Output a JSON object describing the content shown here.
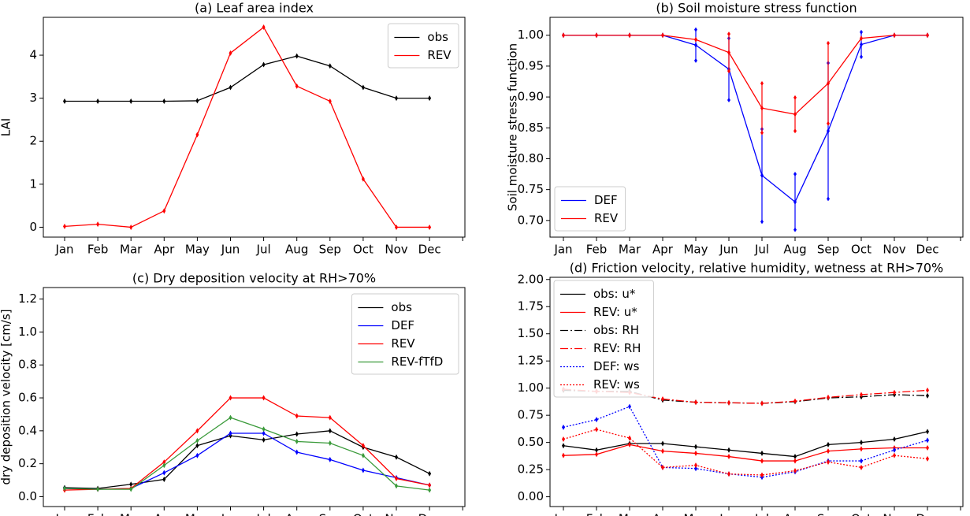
{
  "chart_data": [
    {
      "type": "line",
      "title": "(a) Leaf area index",
      "y_label": "LAI",
      "categories": [
        "Jan",
        "Feb",
        "Mar",
        "Apr",
        "May",
        "Jun",
        "Jul",
        "Aug",
        "Sep",
        "Oct",
        "Nov",
        "Dec"
      ],
      "ylim": [
        -0.23,
        4.88
      ],
      "yticks": [
        0,
        1,
        2,
        3,
        4
      ],
      "legend": "upper right",
      "series": [
        {
          "name": "obs",
          "color": "#000000",
          "values": [
            2.93,
            2.93,
            2.93,
            2.93,
            2.94,
            3.25,
            3.78,
            3.98,
            3.75,
            3.25,
            3.0,
            3.0
          ]
        },
        {
          "name": "REV",
          "color": "#ff0000",
          "values": [
            0.02,
            0.07,
            0.0,
            0.38,
            2.15,
            4.05,
            4.65,
            3.28,
            2.93,
            1.12,
            0.0,
            0.0
          ]
        }
      ]
    },
    {
      "type": "line",
      "title": "(b) Soil moisture stress function",
      "y_label": "Soil moisture stress function",
      "categories": [
        "Jan",
        "Feb",
        "Mar",
        "Apr",
        "May",
        "Jun",
        "Jul",
        "Aug",
        "Sep",
        "Oct",
        "Nov",
        "Dec"
      ],
      "ylim": [
        0.673,
        1.029
      ],
      "yticks": [
        {
          "value": 0.7,
          "label": "0.70"
        },
        0.75,
        {
          "value": 0.8,
          "label": "0.80"
        },
        0.85,
        {
          "value": 0.9,
          "label": "0.90"
        },
        0.95,
        {
          "value": 1.0,
          "label": "1.00"
        }
      ],
      "legend": "lower left",
      "series": [
        {
          "name": "DEF",
          "color": "#0000ff",
          "values": [
            1,
            1,
            1,
            1,
            0.984,
            0.945,
            0.773,
            0.73,
            0.845,
            0.985,
            1.0,
            1.0
          ],
          "errors": [
            0,
            0,
            0,
            0,
            0.025,
            0.05,
            0.075,
            0.045,
            0.11,
            0.02,
            0,
            0
          ]
        },
        {
          "name": "REV",
          "color": "#ff0000",
          "values": [
            1,
            1,
            1,
            1,
            0.993,
            0.972,
            0.882,
            0.872,
            0.922,
            0.995,
            1.0,
            1.0
          ],
          "errors": [
            0,
            0,
            0,
            0,
            0,
            0.03,
            0.04,
            0.027,
            0.065,
            0,
            0,
            0
          ]
        }
      ]
    },
    {
      "type": "line",
      "title": "(c) Dry deposition velocity at RH>70%",
      "y_label": "dry deposition velocity [cm/s]",
      "categories": [
        "Jan",
        "Feb",
        "Mar",
        "Apr",
        "May",
        "Jun",
        "Jul",
        "Aug",
        "Sep",
        "Oct",
        "Nov",
        "Dec"
      ],
      "ylim": [
        -0.06,
        1.27
      ],
      "yticks": [
        {
          "value": 0,
          "label": "0.0"
        },
        0.2,
        0.4,
        0.6,
        0.8,
        {
          "value": 1,
          "label": "1.0"
        },
        1.2
      ],
      "legend": "upper right",
      "series": [
        {
          "name": "obs",
          "color": "#000000",
          "values": [
            0.055,
            0.05,
            0.075,
            0.105,
            0.31,
            0.37,
            0.345,
            0.38,
            0.4,
            0.3,
            0.24,
            0.14
          ]
        },
        {
          "name": "DEF",
          "color": "#0000ff",
          "values": [
            0.05,
            0.045,
            0.05,
            0.145,
            0.25,
            0.385,
            0.385,
            0.27,
            0.225,
            0.16,
            0.115,
            0.07
          ]
        },
        {
          "name": "REV",
          "color": "#ff0000",
          "values": [
            0.04,
            0.045,
            0.05,
            0.21,
            0.4,
            0.6,
            0.6,
            0.49,
            0.48,
            0.31,
            0.11,
            0.07
          ]
        },
        {
          "name": "REV-fTfD",
          "color": "#3a9a3a",
          "values": [
            0.05,
            0.045,
            0.045,
            0.19,
            0.34,
            0.48,
            0.41,
            0.335,
            0.325,
            0.25,
            0.065,
            0.04
          ]
        }
      ]
    },
    {
      "type": "line",
      "title": "(d) Friction velocity, relative humidity, wetness at RH>70%",
      "categories": [
        "Jan",
        "Feb",
        "Mar",
        "Apr",
        "May",
        "Jun",
        "Jul",
        "Aug",
        "Sep",
        "Oct",
        "Nov",
        "Dec"
      ],
      "ylim": [
        -0.09,
        2.02
      ],
      "yticks": [
        {
          "value": 0,
          "label": "0.00"
        },
        0.25,
        {
          "value": 0.5,
          "label": "0.50"
        },
        0.75,
        {
          "value": 1,
          "label": "1.00"
        },
        1.25,
        {
          "value": 1.5,
          "label": "1.50"
        },
        1.75,
        {
          "value": 2,
          "label": "2.00"
        }
      ],
      "legend": "upper left",
      "series": [
        {
          "name": "obs: u*",
          "color": "#000000",
          "dash": "solid",
          "values": [
            0.47,
            0.43,
            0.49,
            0.49,
            0.46,
            0.43,
            0.4,
            0.37,
            0.48,
            0.5,
            0.53,
            0.6
          ]
        },
        {
          "name": "REV: u*",
          "color": "#ff0000",
          "dash": "solid",
          "values": [
            0.38,
            0.39,
            0.48,
            0.42,
            0.4,
            0.37,
            0.33,
            0.33,
            0.42,
            0.44,
            0.45,
            0.45
          ]
        },
        {
          "name": "obs: RH",
          "color": "#000000",
          "dash": "dashdot",
          "values": [
            0.98,
            0.97,
            0.97,
            0.89,
            0.87,
            0.865,
            0.86,
            0.875,
            0.91,
            0.92,
            0.94,
            0.93
          ]
        },
        {
          "name": "REV: RH",
          "color": "#ff0000",
          "dash": "dashdot",
          "values": [
            0.99,
            0.97,
            0.96,
            0.9,
            0.87,
            0.865,
            0.86,
            0.88,
            0.915,
            0.94,
            0.96,
            0.98
          ]
        },
        {
          "name": "DEF: ws",
          "color": "#0000ff",
          "dash": "dotted",
          "values": [
            0.64,
            0.71,
            0.83,
            0.27,
            0.26,
            0.21,
            0.18,
            0.23,
            0.33,
            0.33,
            0.43,
            0.52
          ]
        },
        {
          "name": "REV: ws",
          "color": "#ff0000",
          "dash": "dotted",
          "values": [
            0.53,
            0.62,
            0.54,
            0.27,
            0.29,
            0.21,
            0.2,
            0.24,
            0.32,
            0.27,
            0.38,
            0.35
          ]
        }
      ]
    }
  ]
}
